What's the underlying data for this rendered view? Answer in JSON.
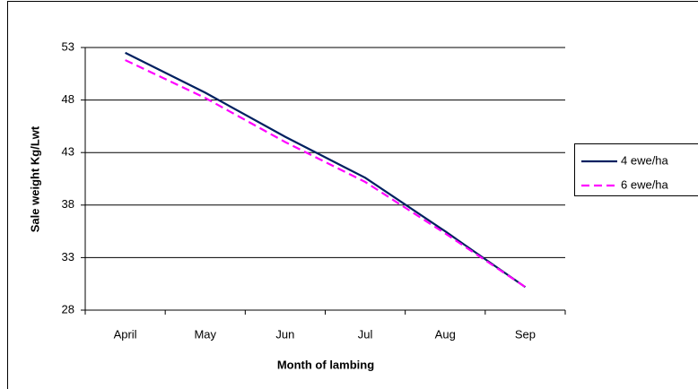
{
  "chart_data": {
    "type": "line",
    "x_label": "Month of lambing",
    "y_label": "Sale weight Kg/Lwt",
    "categories": [
      "April",
      "May",
      "Jun",
      "Jul",
      "Aug",
      "Sep"
    ],
    "series": [
      {
        "name": "4 ewe/ha",
        "color": "#002060",
        "dash": false,
        "values": [
          52.5,
          48.7,
          44.5,
          40.6,
          35.5,
          30.2
        ]
      },
      {
        "name": "6 ewe/ha",
        "color": "#ff00ff",
        "dash": true,
        "values": [
          51.8,
          48.2,
          44.0,
          40.2,
          35.3,
          30.2
        ]
      }
    ],
    "ylim": [
      28,
      53
    ],
    "yticks": [
      28,
      33,
      38,
      43,
      48,
      53
    ],
    "grid": true,
    "legend": "right"
  }
}
